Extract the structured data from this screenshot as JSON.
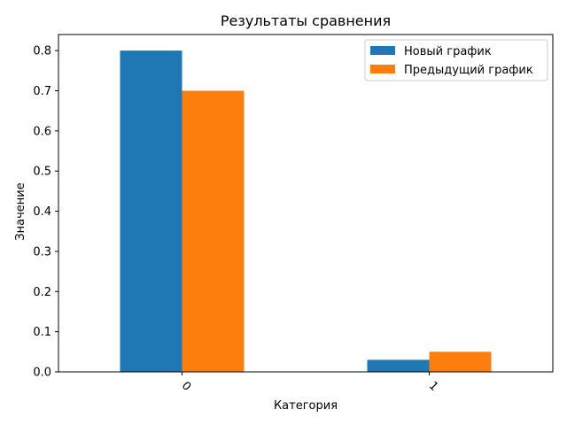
{
  "chart_data": {
    "type": "bar",
    "title": "Результаты сравнения",
    "xlabel": "Категория",
    "ylabel": "Значение",
    "categories": [
      "0",
      "1"
    ],
    "series": [
      {
        "name": "Новый график",
        "values": [
          0.8,
          0.03
        ],
        "color": "#1f77b4"
      },
      {
        "name": "Предыдущий график",
        "values": [
          0.7,
          0.05
        ],
        "color": "#ff7f0e"
      }
    ],
    "ylim": [
      0,
      0.84
    ],
    "yticks": [
      "0.0",
      "0.1",
      "0.2",
      "0.3",
      "0.4",
      "0.5",
      "0.6",
      "0.7",
      "0.8"
    ],
    "grid": false,
    "legend_position": "top-right"
  }
}
